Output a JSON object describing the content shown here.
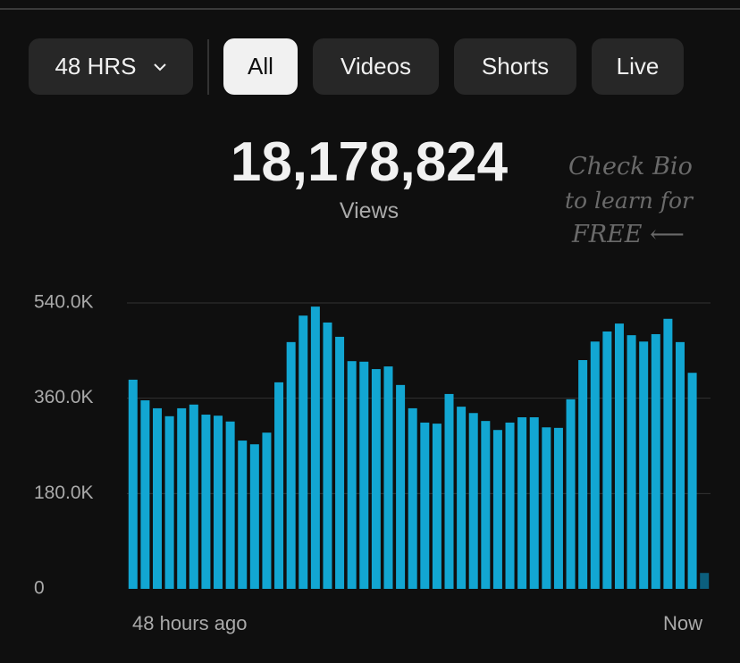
{
  "filters": {
    "range": "48 HRS",
    "tabs": [
      "All",
      "Videos",
      "Shorts",
      "Live"
    ]
  },
  "total": {
    "value": "18,178,824",
    "label": "Views"
  },
  "annotation": [
    "Check Bio",
    "to learn for",
    "FREE ⟵"
  ],
  "chart_data": {
    "type": "bar",
    "categories": [
      "48 hours ago",
      null,
      null,
      null,
      null,
      null,
      null,
      null,
      null,
      null,
      null,
      null,
      null,
      null,
      null,
      null,
      null,
      null,
      null,
      null,
      null,
      null,
      null,
      null,
      null,
      null,
      null,
      null,
      null,
      null,
      null,
      null,
      null,
      null,
      null,
      null,
      null,
      null,
      null,
      null,
      null,
      null,
      null,
      null,
      null,
      null,
      null,
      "Now"
    ],
    "values": [
      395000,
      356000,
      341000,
      326000,
      341000,
      348000,
      329000,
      327000,
      316000,
      280000,
      273000,
      295000,
      390000,
      466000,
      516000,
      533000,
      503000,
      476000,
      430000,
      429000,
      415000,
      420000,
      385000,
      341000,
      314000,
      312000,
      368000,
      344000,
      332000,
      317000,
      300000,
      314000,
      324000,
      324000,
      305000,
      304000,
      358000,
      432000,
      467000,
      486000,
      501000,
      479000,
      467000,
      481000,
      510000,
      466000,
      408000,
      30000
    ],
    "color": "#12a6d2",
    "last_color": "#0c5f7d",
    "ylim": [
      0,
      540000
    ],
    "yticks": [
      0,
      {
        "value": 180000,
        "label": "180.0K"
      },
      {
        "value": 360000,
        "label": "360.0K"
      },
      {
        "value": 540000,
        "label": "540.0K"
      }
    ],
    "grid": true
  }
}
